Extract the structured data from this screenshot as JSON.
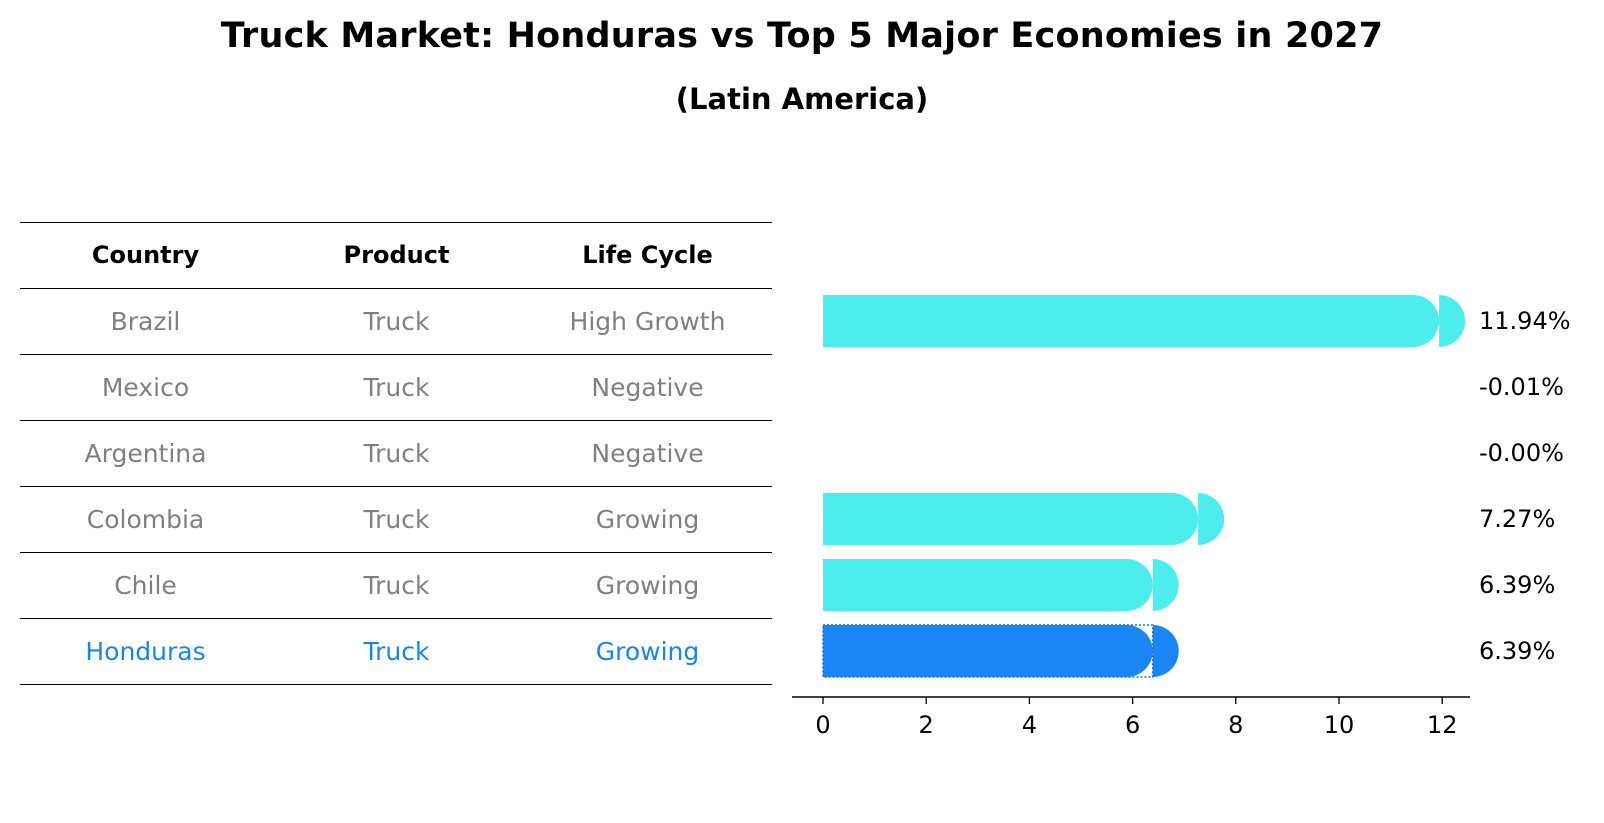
{
  "title": "Truck Market: Honduras vs Top 5 Major Economies in 2027",
  "subtitle": "(Latin America)",
  "table": {
    "headers": [
      "Country",
      "Product",
      "Life Cycle"
    ],
    "rows": [
      [
        "Brazil",
        "Truck",
        "High Growth"
      ],
      [
        "Mexico",
        "Truck",
        "Negative"
      ],
      [
        "Argentina",
        "Truck",
        "Negative"
      ],
      [
        "Colombia",
        "Truck",
        "Growing"
      ],
      [
        "Chile",
        "Truck",
        "Growing"
      ],
      [
        "Honduras",
        "Truck",
        "Growing"
      ]
    ],
    "highlight_row": 5
  },
  "colors": {
    "bar": "#4deded",
    "highlight": "#1a85f5",
    "text_muted": "#808080",
    "text_highlight": "#1a85e8"
  },
  "chart_data": {
    "type": "bar",
    "orientation": "horizontal",
    "categories": [
      "Brazil",
      "Mexico",
      "Argentina",
      "Colombia",
      "Chile",
      "Honduras"
    ],
    "values": [
      11.94,
      -0.01,
      -0.0,
      7.27,
      6.39,
      6.39
    ],
    "value_labels": [
      "11.94%",
      "-0.01%",
      "-0.00%",
      "7.27%",
      "6.39%",
      "6.39%"
    ],
    "highlight_index": 5,
    "xlim": [
      -0.6,
      12.5
    ],
    "xticks": [
      0,
      2,
      4,
      6,
      8,
      10,
      12
    ],
    "grid": false,
    "legend": "none"
  }
}
